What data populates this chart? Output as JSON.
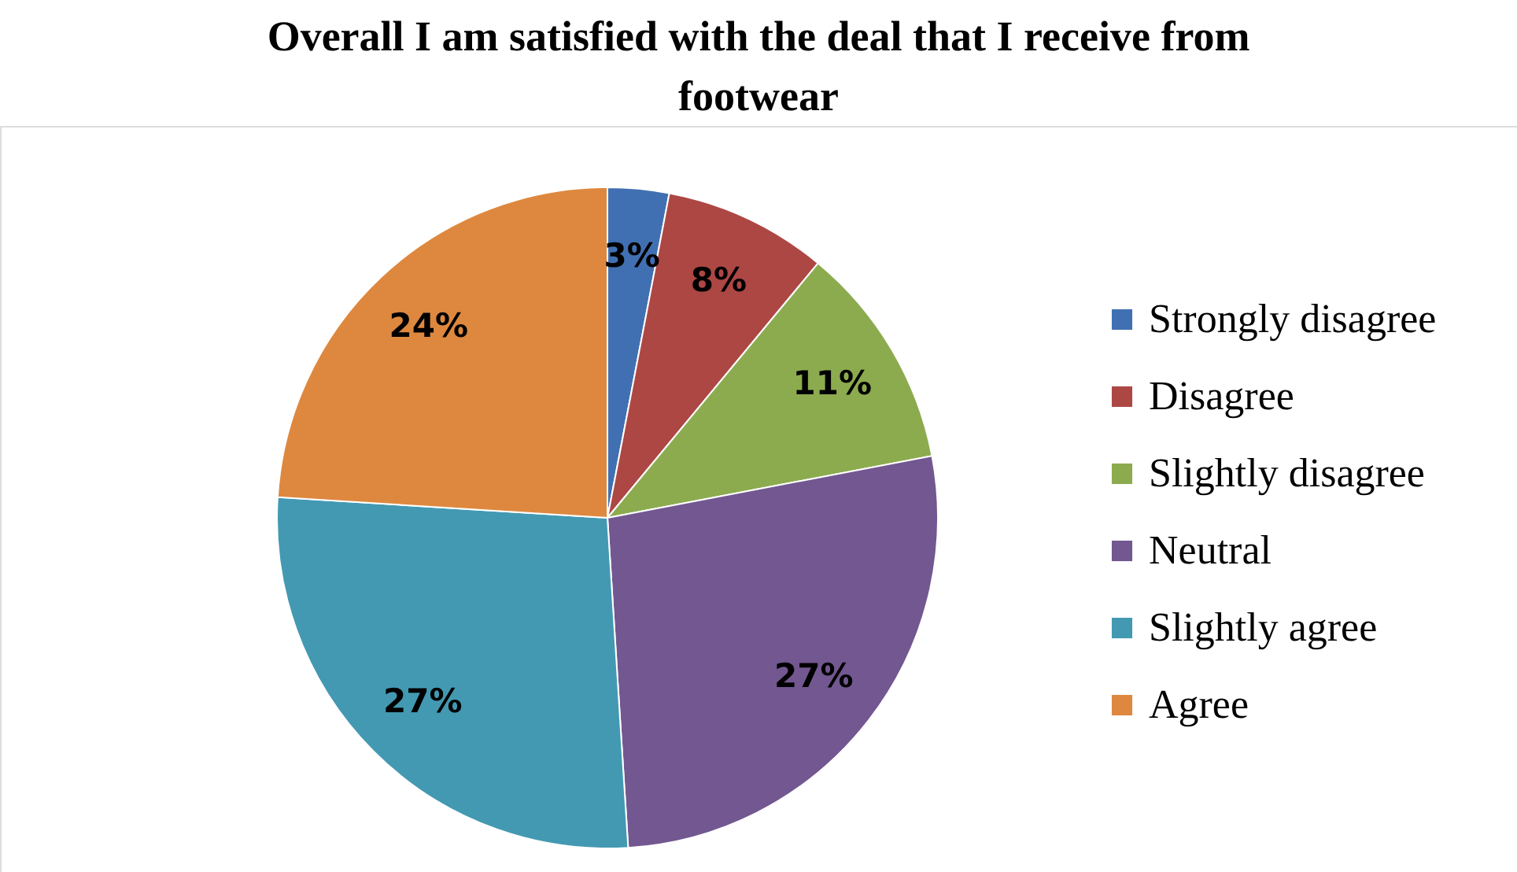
{
  "chart_data": {
    "type": "pie",
    "title": "Overall I am satisfied with the deal that I receive from footwear",
    "categories": [
      "Strongly disagree",
      "Disagree",
      "Slightly disagree",
      "Neutral",
      "Slightly agree",
      "Agree"
    ],
    "values": [
      3,
      8,
      11,
      27,
      27,
      24
    ],
    "colors": [
      "#4170b2",
      "#ad4744",
      "#8cab4f",
      "#725790",
      "#4399b2",
      "#de883f"
    ],
    "value_labels": [
      "3%",
      "8%",
      "11%",
      "27%",
      "27%",
      "24%"
    ],
    "legend": "right"
  }
}
